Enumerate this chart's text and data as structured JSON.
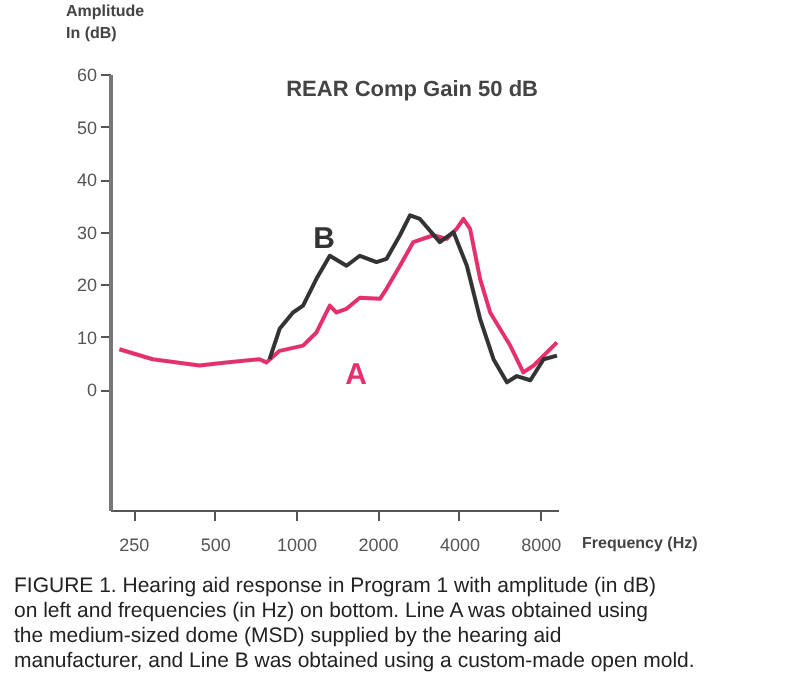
{
  "chart_data": {
    "type": "line",
    "ylabel": "Amplitude\nIn (dB)",
    "xlabel": "Frequency (Hz)",
    "log": "x",
    "xlim": [
      205,
      9300
    ],
    "xticks": [
      250,
      500,
      1000,
      2000,
      4000,
      8000
    ],
    "ylim": [
      -23,
      60
    ],
    "yticks": [
      0,
      10,
      20,
      30,
      40,
      50,
      60
    ],
    "grid": false,
    "series": [
      {
        "color": "#e5306c",
        "x": [
          222,
          295,
          439,
          551,
          733,
          776,
          869,
          1061,
          1189,
          1332,
          1410,
          1536,
          1720,
          2042,
          2159,
          2421,
          2713,
          3218,
          3605,
          3922,
          4158,
          4400,
          4790,
          5220,
          6190,
          6920,
          7560,
          8460,
          9220
        ],
        "values": [
          7.6,
          5.7,
          4.5,
          5.1,
          5.7,
          5.1,
          7.3,
          8.3,
          10.8,
          15.9,
          14.6,
          15.3,
          17.4,
          17.2,
          19.1,
          23.5,
          28,
          29.3,
          28.6,
          30.5,
          32.4,
          30.5,
          21,
          14.6,
          8.3,
          3.2,
          4.5,
          7,
          8.9
        ]
      },
      {
        "color": "#333333",
        "x": [
          798,
          869,
          974,
          1061,
          1189,
          1332,
          1536,
          1720,
          1983,
          2159,
          2421,
          2637,
          2870,
          3400,
          3820,
          4280,
          4790,
          5370,
          6020,
          6550,
          7350,
          8230,
          9220
        ],
        "values": [
          5.7,
          11.5,
          14.6,
          15.9,
          21,
          25.4,
          23.5,
          25.4,
          24.2,
          24.8,
          29.3,
          33.1,
          32.4,
          28,
          29.9,
          23.5,
          13.4,
          5.7,
          1.3,
          2.5,
          1.7,
          5.7,
          6.4
        ]
      }
    ],
    "annotations": [
      "A",
      "B",
      "REAR Comp Gain 50 dB",
      "FIGURE 1. Hearing aid response in Program 1 with amplitude (in dB) on left and frequencies (in Hz) on bottom. Line A was obtained using the medium-sized dome (MSD) supplied by the hearing aid manufacturer, and Line B was obtained using a custom-made open mold."
    ]
  }
}
